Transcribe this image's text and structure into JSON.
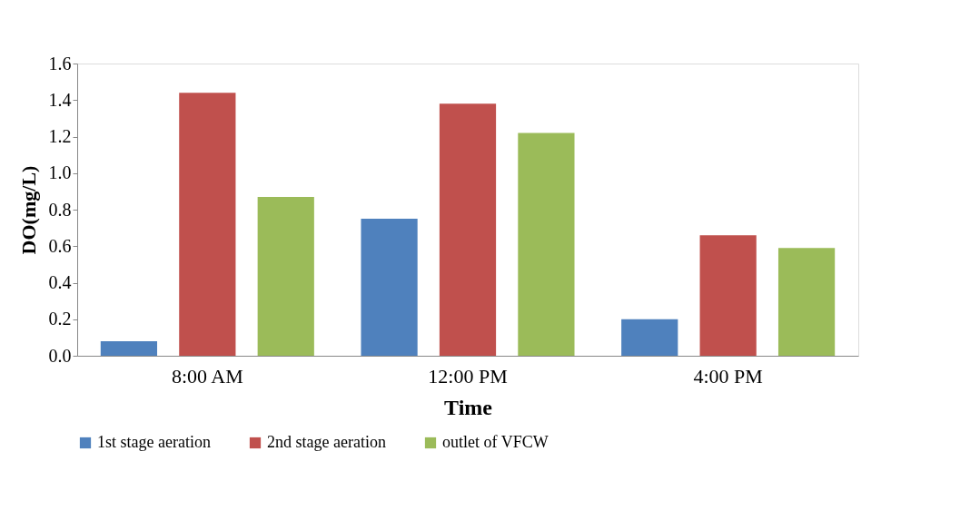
{
  "chart_data": {
    "type": "bar",
    "xlabel": "Time",
    "ylabel": "DO(mg/L)",
    "categories": [
      "8:00 AM",
      "12:00 PM",
      "4:00 PM"
    ],
    "series": [
      {
        "name": "1st stage aeration",
        "color": "#4f81bd",
        "values": [
          0.08,
          0.75,
          0.2
        ]
      },
      {
        "name": "2nd stage aeration",
        "color": "#c0504d",
        "values": [
          1.44,
          1.38,
          0.66
        ]
      },
      {
        "name": "outlet of VFCW",
        "color": "#9bbb59",
        "values": [
          0.87,
          1.22,
          0.59
        ]
      }
    ],
    "ylim": [
      0,
      1.6
    ],
    "yticks": [
      {
        "value": 0,
        "label": "0.0"
      },
      0.2,
      0.4,
      0.6,
      0.8,
      {
        "value": 1,
        "label": "1.0"
      },
      1.2,
      1.4,
      1.6
    ],
    "grid": false,
    "legend": "bottom"
  }
}
